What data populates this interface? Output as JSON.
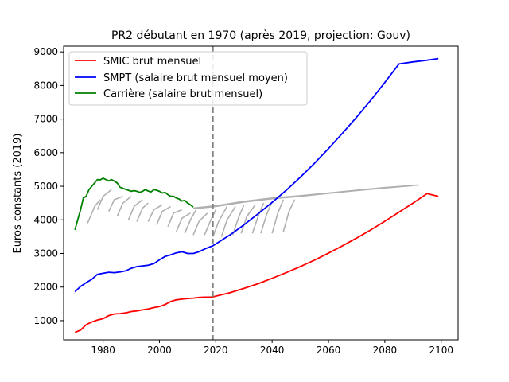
{
  "chart_data": {
    "type": "line",
    "title": "PR2 débutant en 1970  (après 2019, projection: Gouv)",
    "xlabel": "",
    "ylabel": "Euros constants (2019)",
    "xlim": [
      1966,
      2106
    ],
    "ylim": [
      430,
      9170
    ],
    "x_ticks": [
      1980,
      2000,
      2020,
      2040,
      2060,
      2080,
      2100
    ],
    "y_ticks": [
      1000,
      2000,
      3000,
      4000,
      5000,
      6000,
      7000,
      8000,
      9000
    ],
    "grid": false,
    "legend_position": "top-left",
    "vertical_line": {
      "x": 2019,
      "style": "dashed",
      "color": "#808080"
    },
    "series": [
      {
        "name": "SMIC brut mensuel",
        "color": "#ff0000",
        "points": [
          [
            1970,
            650
          ],
          [
            1972,
            720
          ],
          [
            1974,
            880
          ],
          [
            1976,
            960
          ],
          [
            1978,
            1020
          ],
          [
            1980,
            1060
          ],
          [
            1982,
            1150
          ],
          [
            1984,
            1200
          ],
          [
            1986,
            1210
          ],
          [
            1988,
            1230
          ],
          [
            1990,
            1270
          ],
          [
            1992,
            1290
          ],
          [
            1994,
            1320
          ],
          [
            1996,
            1350
          ],
          [
            1998,
            1390
          ],
          [
            2000,
            1420
          ],
          [
            2002,
            1480
          ],
          [
            2004,
            1570
          ],
          [
            2006,
            1620
          ],
          [
            2008,
            1640
          ],
          [
            2010,
            1660
          ],
          [
            2012,
            1670
          ],
          [
            2014,
            1690
          ],
          [
            2016,
            1700
          ],
          [
            2018,
            1700
          ],
          [
            2019,
            1710
          ],
          [
            2025,
            1830
          ],
          [
            2030,
            1960
          ],
          [
            2035,
            2100
          ],
          [
            2040,
            2260
          ],
          [
            2045,
            2430
          ],
          [
            2050,
            2610
          ],
          [
            2055,
            2800
          ],
          [
            2060,
            3010
          ],
          [
            2065,
            3230
          ],
          [
            2070,
            3460
          ],
          [
            2075,
            3700
          ],
          [
            2080,
            3960
          ],
          [
            2085,
            4230
          ],
          [
            2090,
            4500
          ],
          [
            2095,
            4780
          ],
          [
            2099,
            4700
          ]
        ]
      },
      {
        "name": "SMPT (salaire brut mensuel moyen)",
        "color": "#0000ff",
        "points": [
          [
            1970,
            1860
          ],
          [
            1972,
            2020
          ],
          [
            1974,
            2130
          ],
          [
            1976,
            2230
          ],
          [
            1978,
            2380
          ],
          [
            1980,
            2410
          ],
          [
            1982,
            2440
          ],
          [
            1984,
            2430
          ],
          [
            1986,
            2450
          ],
          [
            1988,
            2480
          ],
          [
            1990,
            2560
          ],
          [
            1992,
            2610
          ],
          [
            1994,
            2630
          ],
          [
            1996,
            2650
          ],
          [
            1998,
            2700
          ],
          [
            2000,
            2810
          ],
          [
            2002,
            2910
          ],
          [
            2004,
            2960
          ],
          [
            2006,
            3020
          ],
          [
            2008,
            3050
          ],
          [
            2010,
            3000
          ],
          [
            2012,
            3000
          ],
          [
            2014,
            3050
          ],
          [
            2016,
            3130
          ],
          [
            2018,
            3200
          ],
          [
            2019,
            3230
          ],
          [
            2025,
            3550
          ],
          [
            2030,
            3850
          ],
          [
            2035,
            4180
          ],
          [
            2040,
            4520
          ],
          [
            2045,
            4880
          ],
          [
            2050,
            5270
          ],
          [
            2055,
            5680
          ],
          [
            2060,
            6120
          ],
          [
            2065,
            6580
          ],
          [
            2070,
            7060
          ],
          [
            2075,
            7560
          ],
          [
            2080,
            8090
          ],
          [
            2085,
            8640
          ],
          [
            2090,
            8700
          ],
          [
            2095,
            8750
          ],
          [
            2099,
            8800
          ]
        ]
      },
      {
        "name": "Carrière (salaire brut mensuel)",
        "color": "#008000",
        "points": [
          [
            1970,
            3700
          ],
          [
            1971,
            4000
          ],
          [
            1972,
            4300
          ],
          [
            1973,
            4650
          ],
          [
            1974,
            4700
          ],
          [
            1975,
            4900
          ],
          [
            1976,
            5000
          ],
          [
            1977,
            5100
          ],
          [
            1978,
            5200
          ],
          [
            1979,
            5190
          ],
          [
            1980,
            5240
          ],
          [
            1981,
            5200
          ],
          [
            1982,
            5160
          ],
          [
            1983,
            5200
          ],
          [
            1984,
            5150
          ],
          [
            1985,
            5100
          ],
          [
            1986,
            4970
          ],
          [
            1987,
            4940
          ],
          [
            1988,
            4910
          ],
          [
            1989,
            4880
          ],
          [
            1990,
            4850
          ],
          [
            1991,
            4870
          ],
          [
            1992,
            4850
          ],
          [
            1993,
            4820
          ],
          [
            1994,
            4850
          ],
          [
            1995,
            4900
          ],
          [
            1996,
            4860
          ],
          [
            1997,
            4830
          ],
          [
            1998,
            4900
          ],
          [
            1999,
            4880
          ],
          [
            2000,
            4850
          ],
          [
            2001,
            4800
          ],
          [
            2002,
            4820
          ],
          [
            2003,
            4750
          ],
          [
            2004,
            4700
          ],
          [
            2005,
            4700
          ],
          [
            2006,
            4650
          ],
          [
            2007,
            4620
          ],
          [
            2008,
            4560
          ],
          [
            2009,
            4580
          ],
          [
            2010,
            4500
          ],
          [
            2011,
            4450
          ],
          [
            2012,
            4380
          ]
        ]
      }
    ],
    "background_lines": {
      "color": "#b0b0b0",
      "segments": [
        [
          [
            1974.5,
            3900
          ],
          [
            1977,
            4400
          ],
          [
            1979,
            4600
          ]
        ],
        [
          [
            1978,
            4300
          ],
          [
            1980,
            4700
          ],
          [
            1983,
            4900
          ]
        ],
        [
          [
            1982,
            4250
          ],
          [
            1984,
            4600
          ],
          [
            1987,
            4700
          ]
        ],
        [
          [
            1985,
            4100
          ],
          [
            1987,
            4500
          ],
          [
            1990,
            4700
          ]
        ],
        [
          [
            1989,
            4000
          ],
          [
            1991,
            4400
          ],
          [
            1994,
            4600
          ]
        ],
        [
          [
            1992,
            3950
          ],
          [
            1994,
            4350
          ],
          [
            1996,
            4500
          ]
        ],
        [
          [
            1996,
            3950
          ],
          [
            1998,
            4300
          ],
          [
            2001,
            4450
          ]
        ],
        [
          [
            1999,
            3850
          ],
          [
            2001,
            4250
          ],
          [
            2004,
            4400
          ]
        ],
        [
          [
            2003,
            3800
          ],
          [
            2005,
            4200
          ],
          [
            2008,
            4300
          ]
        ],
        [
          [
            2006,
            3650
          ],
          [
            2008,
            4050
          ],
          [
            2011,
            4200
          ]
        ],
        [
          [
            2009,
            3600
          ],
          [
            2011,
            4000
          ],
          [
            2013,
            4300
          ]
        ],
        [
          [
            2012,
            3550
          ],
          [
            2014,
            3950
          ],
          [
            2017,
            4200
          ]
        ],
        [
          [
            2016,
            3550
          ],
          [
            2018,
            3950
          ],
          [
            2020,
            4300
          ]
        ],
        [
          [
            2019,
            3500
          ],
          [
            2021,
            3950
          ],
          [
            2024,
            4400
          ]
        ],
        [
          [
            2022,
            3500
          ],
          [
            2024,
            4000
          ],
          [
            2027,
            4400
          ]
        ],
        [
          [
            2026,
            3550
          ],
          [
            2028,
            4050
          ],
          [
            2030,
            4450
          ]
        ],
        [
          [
            2029,
            3600
          ],
          [
            2031,
            4100
          ],
          [
            2034,
            4450
          ]
        ],
        [
          [
            2033,
            3600
          ],
          [
            2035,
            4100
          ],
          [
            2037,
            4500
          ]
        ],
        [
          [
            2036,
            3600
          ],
          [
            2038,
            4150
          ],
          [
            2040,
            4550
          ]
        ],
        [
          [
            2040,
            3600
          ],
          [
            2042,
            4200
          ],
          [
            2044,
            4600
          ]
        ],
        [
          [
            2044,
            3650
          ],
          [
            2046,
            4250
          ],
          [
            2048,
            4600
          ]
        ],
        [
          [
            2012,
            4350
          ],
          [
            2020,
            4420
          ],
          [
            2030,
            4550
          ],
          [
            2040,
            4650
          ],
          [
            2050,
            4720
          ],
          [
            2060,
            4800
          ],
          [
            2070,
            4880
          ],
          [
            2080,
            4960
          ],
          [
            2092,
            5040
          ]
        ],
        [
          [
            2013,
            4340
          ],
          [
            2020,
            4400
          ],
          [
            2030,
            4530
          ],
          [
            2040,
            4630
          ],
          [
            2050,
            4700
          ],
          [
            2060,
            4790
          ],
          [
            2070,
            4870
          ],
          [
            2080,
            4950
          ],
          [
            2090,
            5020
          ]
        ]
      ]
    }
  }
}
